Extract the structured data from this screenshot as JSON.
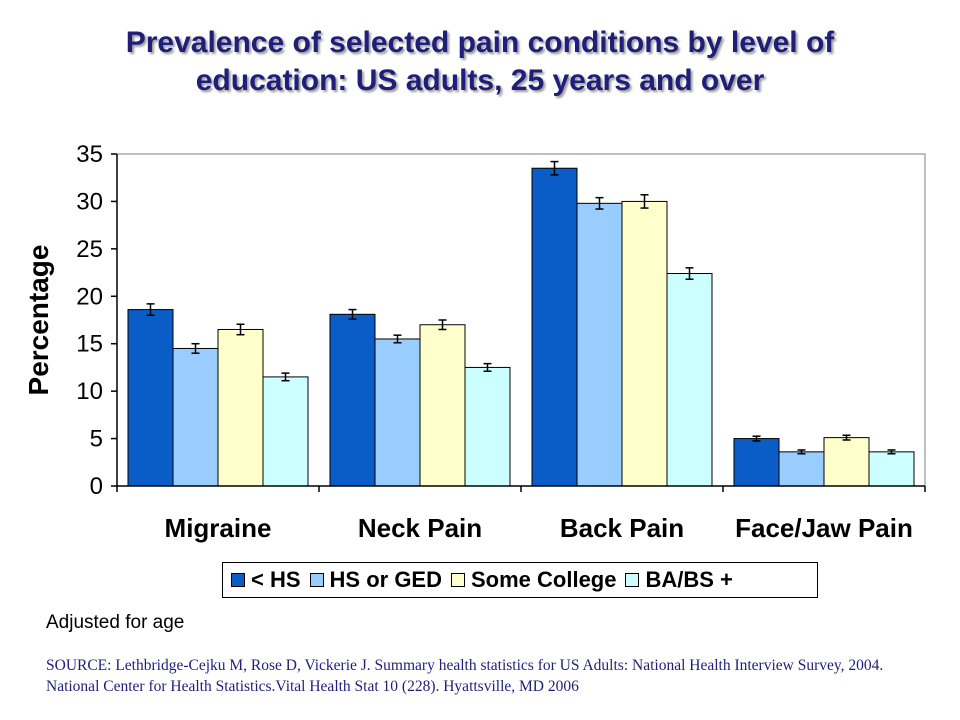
{
  "title_line1": "Prevalence of selected pain conditions by level of",
  "title_line2": "education: US adults, 25 years and over",
  "note": "Adjusted for age",
  "source": "SOURCE: Lethbridge-Cejku M, Rose D, Vickerie J. Summary health statistics for US Adults:  National Health Interview Survey, 2004. National Center for Health Statistics.Vital Health Stat 10 (228). Hyattsville, MD 2006",
  "chart_data": {
    "type": "bar",
    "title": "Prevalence of selected pain conditions by level of education: US adults, 25 years and over",
    "xlabel": "",
    "ylabel": "Percentage",
    "ylim": [
      0,
      35
    ],
    "yticks": [
      "0",
      "5",
      "10",
      "15",
      "20",
      "25",
      "30",
      "35"
    ],
    "grid": false,
    "legend_position": "bottom",
    "categories": [
      "Migraine",
      "Neck Pain",
      "Back Pain",
      "Face/Jaw Pain"
    ],
    "series": [
      {
        "name": "< HS",
        "color": "#0a5cc7",
        "values": [
          18.6,
          18.1,
          33.5,
          5.0
        ],
        "error": [
          0.6,
          0.5,
          0.7,
          0.25
        ]
      },
      {
        "name": "HS or GED",
        "color": "#99ccff",
        "values": [
          14.5,
          15.5,
          29.8,
          3.6
        ],
        "error": [
          0.5,
          0.4,
          0.6,
          0.2
        ]
      },
      {
        "name": "Some College",
        "color": "#ffffcc",
        "values": [
          16.5,
          17.0,
          30.0,
          5.1
        ],
        "error": [
          0.55,
          0.5,
          0.7,
          0.25
        ]
      },
      {
        "name": "BA/BS +",
        "color": "#ccffff",
        "values": [
          11.5,
          12.5,
          22.4,
          3.6
        ],
        "error": [
          0.4,
          0.4,
          0.6,
          0.2
        ]
      }
    ]
  }
}
